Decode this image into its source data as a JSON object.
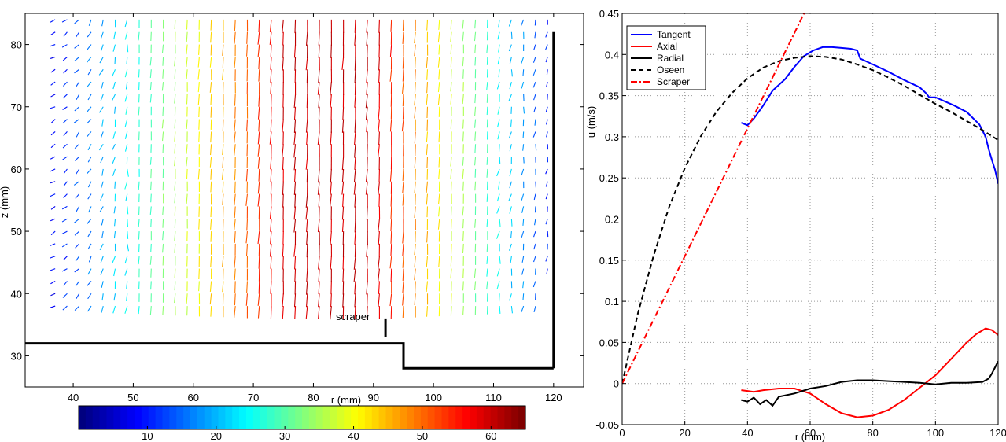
{
  "chart_data": [
    {
      "type": "quiver",
      "xlabel": "r (mm)",
      "ylabel": "z (mm)",
      "xlim": [
        32,
        125
      ],
      "ylim": [
        25,
        85
      ],
      "xticks": [
        40,
        50,
        60,
        70,
        80,
        90,
        100,
        110,
        120
      ],
      "yticks": [
        30,
        40,
        50,
        60,
        70,
        80
      ],
      "annotation": "scraper",
      "colorbar": {
        "ticks": [
          10,
          20,
          30,
          40,
          50,
          60
        ],
        "range": [
          0,
          65
        ]
      },
      "vector_columns_r": [
        37,
        39,
        41,
        43,
        45,
        47,
        49,
        51,
        53,
        55,
        57,
        59,
        61,
        63,
        65,
        67,
        69,
        71,
        73,
        75,
        77,
        79,
        81,
        83,
        85,
        87,
        89,
        91,
        93,
        95,
        97,
        99,
        101,
        103,
        105,
        107,
        109,
        111,
        113,
        115,
        117,
        119
      ],
      "vector_rows_z": [
        38,
        40,
        42,
        44,
        46,
        48,
        50,
        52,
        54,
        56,
        58,
        60,
        62,
        64,
        66,
        68,
        70,
        72,
        74,
        76,
        78,
        80,
        82,
        84
      ],
      "geometry": {
        "floor_left": [
          [
            32,
            32
          ],
          [
            95,
            32
          ],
          [
            95,
            28
          ],
          [
            120,
            28
          ]
        ],
        "outer_wall": [
          [
            120,
            28
          ],
          [
            120,
            82
          ]
        ],
        "scraper": [
          [
            92,
            33
          ],
          [
            92,
            36
          ]
        ]
      }
    },
    {
      "type": "line",
      "xlabel": "r (mm)",
      "ylabel": "u (m/s)",
      "xlim": [
        0,
        120
      ],
      "ylim": [
        -0.05,
        0.45
      ],
      "xticks": [
        0,
        20,
        40,
        60,
        80,
        100,
        120
      ],
      "yticks": [
        -0.05,
        0,
        0.05,
        0.1,
        0.15,
        0.2,
        0.25,
        0.3,
        0.35,
        0.4,
        0.45
      ],
      "grid": true,
      "legend_position": "top-left",
      "series": [
        {
          "name": "Tangent",
          "color": "#0000ff",
          "dash": "solid",
          "x": [
            38,
            40,
            42,
            45,
            48,
            52,
            55,
            58,
            61,
            64,
            67,
            70,
            73,
            75,
            76,
            80,
            85,
            90,
            95,
            97,
            98,
            100,
            103,
            106,
            110,
            114,
            116,
            117,
            118,
            119,
            120
          ],
          "y": [
            0.317,
            0.314,
            0.322,
            0.338,
            0.356,
            0.37,
            0.385,
            0.398,
            0.405,
            0.409,
            0.409,
            0.408,
            0.407,
            0.405,
            0.395,
            0.388,
            0.379,
            0.369,
            0.36,
            0.353,
            0.348,
            0.348,
            0.343,
            0.338,
            0.33,
            0.315,
            0.3,
            0.285,
            0.272,
            0.26,
            0.243
          ]
        },
        {
          "name": "Axial",
          "color": "#ff0000",
          "dash": "solid",
          "x": [
            38,
            40,
            42,
            45,
            50,
            55,
            60,
            65,
            70,
            75,
            80,
            85,
            90,
            95,
            100,
            105,
            110,
            113,
            116,
            118,
            120
          ],
          "y": [
            -0.008,
            -0.009,
            -0.01,
            -0.008,
            -0.006,
            -0.006,
            -0.012,
            -0.025,
            -0.036,
            -0.041,
            -0.039,
            -0.032,
            -0.02,
            -0.005,
            0.01,
            0.03,
            0.05,
            0.06,
            0.067,
            0.065,
            0.059
          ]
        },
        {
          "name": "Radial",
          "color": "#000000",
          "dash": "solid",
          "x": [
            38,
            40,
            42,
            44,
            46,
            48,
            50,
            55,
            60,
            65,
            70,
            75,
            80,
            85,
            90,
            95,
            100,
            105,
            110,
            115,
            117,
            118,
            120
          ],
          "y": [
            -0.02,
            -0.022,
            -0.017,
            -0.025,
            -0.02,
            -0.027,
            -0.016,
            -0.012,
            -0.006,
            -0.003,
            0.002,
            0.004,
            0.004,
            0.003,
            0.002,
            0.001,
            -0.001,
            0.001,
            0.001,
            0.002,
            0.006,
            0.012,
            0.027
          ]
        },
        {
          "name": "Oseen",
          "color": "#000000",
          "dash": "6,4",
          "x": [
            0,
            5,
            10,
            15,
            20,
            25,
            30,
            35,
            40,
            45,
            50,
            55,
            60,
            65,
            70,
            75,
            80,
            85,
            90,
            95,
            100,
            105,
            110,
            115,
            120
          ],
          "y": [
            0.0,
            0.085,
            0.155,
            0.215,
            0.262,
            0.3,
            0.33,
            0.353,
            0.371,
            0.384,
            0.392,
            0.396,
            0.398,
            0.397,
            0.394,
            0.388,
            0.381,
            0.372,
            0.362,
            0.351,
            0.34,
            0.33,
            0.319,
            0.308,
            0.296
          ]
        },
        {
          "name": "Scraper",
          "color": "#ff0000",
          "dash": "8,3,2,3",
          "x": [
            0,
            20,
            40,
            60
          ],
          "y": [
            0.0,
            0.155,
            0.31,
            0.465
          ]
        }
      ]
    }
  ]
}
